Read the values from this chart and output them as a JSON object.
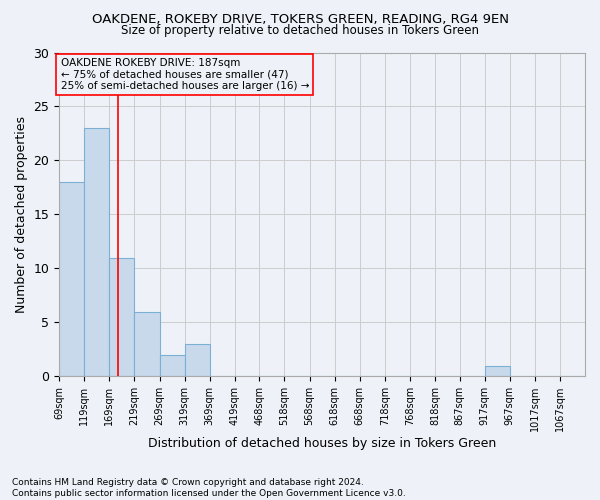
{
  "title": "OAKDENE, ROKEBY DRIVE, TOKERS GREEN, READING, RG4 9EN",
  "subtitle": "Size of property relative to detached houses in Tokers Green",
  "xlabel": "Distribution of detached houses by size in Tokers Green",
  "ylabel": "Number of detached properties",
  "footnote1": "Contains HM Land Registry data © Crown copyright and database right 2024.",
  "footnote2": "Contains public sector information licensed under the Open Government Licence v3.0.",
  "annotation_line1": "OAKDENE ROKEBY DRIVE: 187sqm",
  "annotation_line2": "← 75% of detached houses are smaller (47)",
  "annotation_line3": "25% of semi-detached houses are larger (16) →",
  "bar_edges": [
    69,
    119,
    169,
    219,
    269,
    319,
    369,
    419,
    468,
    518,
    568,
    618,
    668,
    718,
    768,
    818,
    867,
    917,
    967,
    1017,
    1067
  ],
  "bar_heights": [
    18,
    23,
    11,
    6,
    2,
    3,
    0,
    0,
    0,
    0,
    0,
    0,
    0,
    0,
    0,
    0,
    0,
    1,
    0,
    0,
    0
  ],
  "bar_color": "#c8d9ec",
  "bar_edge_color": "#7bafd4",
  "vline_x": 187,
  "vline_color": "red",
  "ylim": [
    0,
    30
  ],
  "yticks": [
    0,
    5,
    10,
    15,
    20,
    25,
    30
  ],
  "tick_labels": [
    "69sqm",
    "119sqm",
    "169sqm",
    "219sqm",
    "269sqm",
    "319sqm",
    "369sqm",
    "419sqm",
    "468sqm",
    "518sqm",
    "568sqm",
    "618sqm",
    "668sqm",
    "718sqm",
    "768sqm",
    "818sqm",
    "867sqm",
    "917sqm",
    "967sqm",
    "1017sqm",
    "1067sqm"
  ],
  "grid_color": "#cccccc",
  "background_color": "#eef2f8"
}
